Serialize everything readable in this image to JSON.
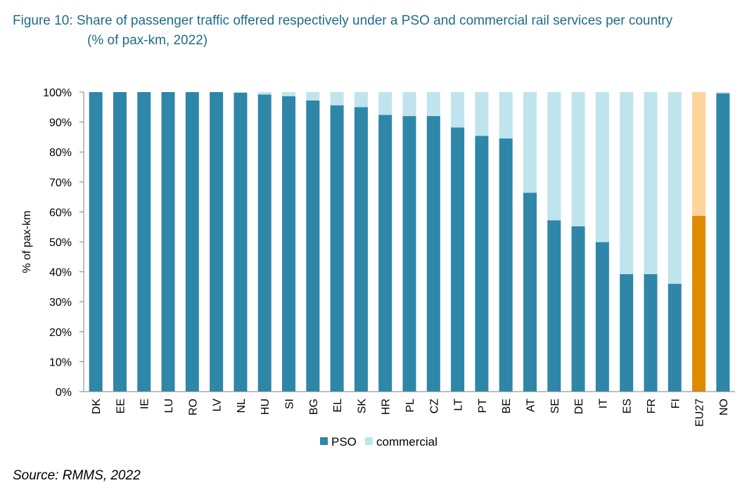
{
  "title": "Figure 10: Share of passenger traffic offered respectively under a PSO and commercial rail services per country",
  "subtitle": "(% of pax-km, 2022)",
  "source": "Source: RMMS, 2022",
  "colors": {
    "pso": "#2e86a8",
    "commercial": "#bfe4ee",
    "pso_eu": "#e08a00",
    "commercial_eu": "#fdd49c"
  },
  "chart_data": {
    "type": "bar",
    "stacked": true,
    "ylabel": "% of pax-km",
    "ylim": [
      0,
      100
    ],
    "yticks": [
      "0%",
      "10%",
      "20%",
      "30%",
      "40%",
      "50%",
      "60%",
      "70%",
      "80%",
      "90%",
      "100%"
    ],
    "categories": [
      "DK",
      "EE",
      "IE",
      "LU",
      "RO",
      "LV",
      "NL",
      "HU",
      "SI",
      "BG",
      "EL",
      "SK",
      "HR",
      "PL",
      "CZ",
      "LT",
      "PT",
      "BE",
      "AT",
      "SE",
      "DE",
      "IT",
      "ES",
      "FR",
      "FI",
      "EU27",
      "NO"
    ],
    "highlight_category": "EU27",
    "series": [
      {
        "name": "PSO",
        "values": [
          100,
          100,
          100,
          100,
          100,
          100,
          99.8,
          99.2,
          98.6,
          97.2,
          95.6,
          95.0,
          92.4,
          92.0,
          92.0,
          88.2,
          85.4,
          84.5,
          66.4,
          57.2,
          55.2,
          49.9,
          39.2,
          39.2,
          36.0,
          58.7,
          99.6
        ]
      },
      {
        "name": "commercial",
        "values": [
          0,
          0,
          0,
          0,
          0,
          0,
          0.2,
          0.8,
          1.4,
          2.8,
          4.4,
          5.0,
          7.6,
          8.0,
          8.0,
          11.8,
          14.6,
          15.5,
          33.6,
          42.8,
          44.8,
          50.1,
          60.8,
          60.8,
          64.0,
          41.3,
          0.4
        ]
      }
    ],
    "legend": [
      "PSO",
      "commercial"
    ],
    "legend_position": "bottom",
    "grid": false
  }
}
